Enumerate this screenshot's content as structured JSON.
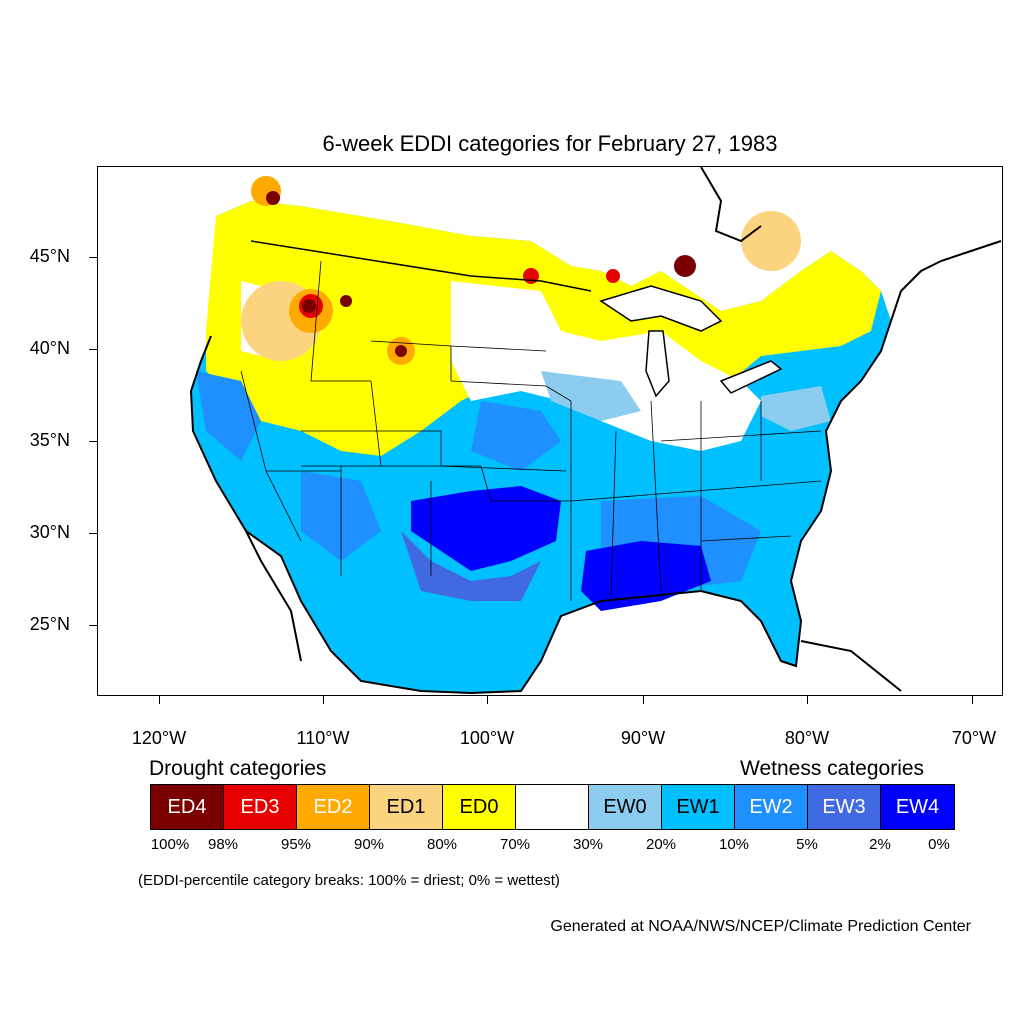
{
  "title": "6-week EDDI categories for February 27, 1983",
  "map": {
    "lat_labels": [
      "45°N",
      "40°N",
      "35°N",
      "30°N",
      "25°N"
    ],
    "lon_labels": [
      "120°W",
      "110°W",
      "100°W",
      "90°W",
      "80°W",
      "70°W"
    ]
  },
  "legend": {
    "drought_heading": "Drought categories",
    "wetness_heading": "Wetness categories",
    "categories": [
      {
        "label": "ED4",
        "color": "#7a0000",
        "text_color": "#ffffff"
      },
      {
        "label": "ED3",
        "color": "#e60000",
        "text_color": "#ffffff"
      },
      {
        "label": "ED2",
        "color": "#ffaa00",
        "text_color": "#ffffff"
      },
      {
        "label": "ED1",
        "color": "#fcd37f",
        "text_color": "#000000"
      },
      {
        "label": "ED0",
        "color": "#ffff00",
        "text_color": "#000000"
      },
      {
        "label": "",
        "color": "#ffffff",
        "text_color": "#000000"
      },
      {
        "label": "EW0",
        "color": "#8ccdef",
        "text_color": "#000000"
      },
      {
        "label": "EW1",
        "color": "#00c0ff",
        "text_color": "#000000"
      },
      {
        "label": "EW2",
        "color": "#1e90ff",
        "text_color": "#ffffff"
      },
      {
        "label": "EW3",
        "color": "#4169e1",
        "text_color": "#ffffff"
      },
      {
        "label": "EW4",
        "color": "#0000ff",
        "text_color": "#ffffff"
      }
    ],
    "breaks": [
      "100%",
      "98%",
      "95%",
      "90%",
      "80%",
      "70%",
      "30%",
      "20%",
      "10%",
      "5%",
      "2%",
      "0%"
    ],
    "note": "(EDDI-percentile category breaks: 100% = driest; 0% = wettest)"
  },
  "credit": "Generated at NOAA/NWS/NCEP/Climate Prediction Center"
}
